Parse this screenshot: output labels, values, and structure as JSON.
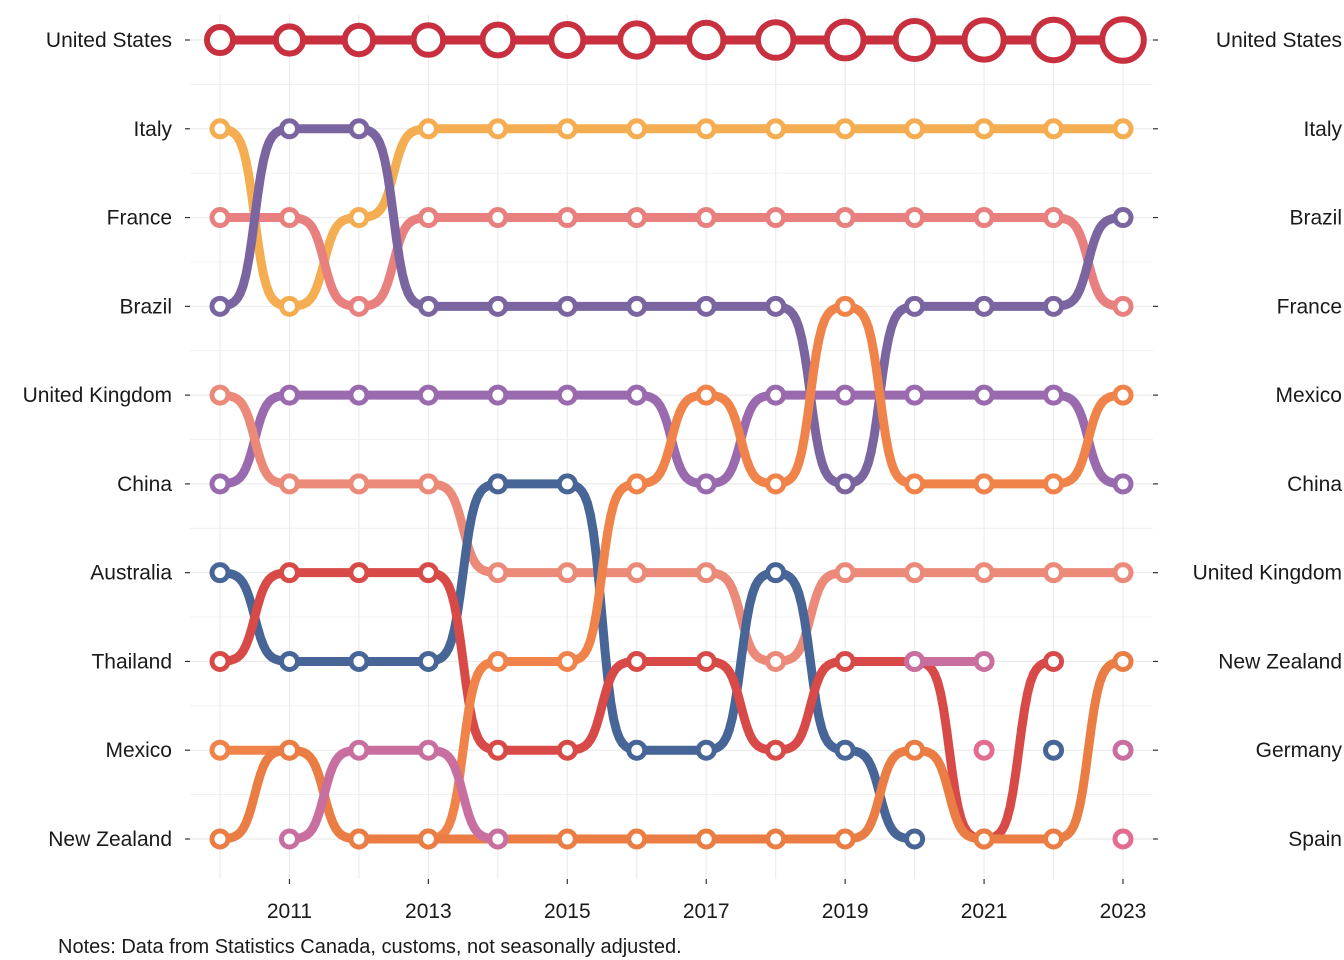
{
  "chart_data": {
    "type": "line",
    "subtype": "bump",
    "title": "",
    "xlabel": "",
    "ylabel": "",
    "note": "Notes: Data from Statistics Canada, customs, not seasonally adjusted.",
    "x": [
      2010,
      2011,
      2012,
      2013,
      2014,
      2015,
      2016,
      2017,
      2018,
      2019,
      2020,
      2021,
      2022,
      2023
    ],
    "xticks": [
      2011,
      2013,
      2015,
      2017,
      2019,
      2021,
      2023
    ],
    "xlim": [
      2010,
      2023
    ],
    "rank_range": [
      1,
      10
    ],
    "y_reversed": true,
    "left_labels": [
      "United States",
      "Italy",
      "France",
      "Brazil",
      "United Kingdom",
      "China",
      "Australia",
      "Thailand",
      "Mexico",
      "New Zealand"
    ],
    "right_labels": [
      "United States",
      "Italy",
      "Brazil",
      "France",
      "Mexico",
      "China",
      "United Kingdom",
      "New Zealand",
      "Germany",
      "Spain"
    ],
    "grid": true,
    "legend": "none",
    "series": [
      {
        "name": "United States",
        "color": "#c8303f",
        "values": [
          1,
          1,
          1,
          1,
          1,
          1,
          1,
          1,
          1,
          1,
          1,
          1,
          1,
          1
        ]
      },
      {
        "name": "Italy",
        "color": "#f5ad52",
        "values": [
          2,
          4,
          3,
          2,
          2,
          2,
          2,
          2,
          2,
          2,
          2,
          2,
          2,
          2
        ]
      },
      {
        "name": "France",
        "color": "#e98080",
        "values": [
          3,
          3,
          4,
          3,
          3,
          3,
          3,
          3,
          3,
          3,
          3,
          3,
          3,
          4
        ]
      },
      {
        "name": "Brazil",
        "color": "#7a65a0",
        "values": [
          4,
          2,
          2,
          4,
          4,
          4,
          4,
          4,
          4,
          6,
          4,
          4,
          4,
          3
        ]
      },
      {
        "name": "China",
        "color": "#9a6aaf",
        "values": [
          6,
          5,
          5,
          5,
          5,
          5,
          5,
          6,
          5,
          5,
          5,
          5,
          5,
          6
        ]
      },
      {
        "name": "United Kingdom",
        "color": "#ec8a7a",
        "values": [
          5,
          6,
          6,
          6,
          7,
          7,
          7,
          7,
          8,
          7,
          7,
          7,
          7,
          7
        ]
      },
      {
        "name": "Australia",
        "color": "#476596",
        "values": [
          7,
          8,
          8,
          8,
          6,
          6,
          9,
          9,
          7,
          9,
          10,
          null,
          9,
          null
        ]
      },
      {
        "name": "Thailand",
        "color": "#d84a47",
        "values": [
          8,
          7,
          7,
          7,
          9,
          9,
          8,
          8,
          9,
          8,
          8,
          10,
          8,
          null
        ]
      },
      {
        "name": "Mexico",
        "color": "#f0834a",
        "values": [
          9,
          9,
          10,
          10,
          8,
          8,
          6,
          5,
          6,
          4,
          6,
          6,
          6,
          5
        ]
      },
      {
        "name": "New Zealand",
        "color": "#ea7d43",
        "values": [
          10,
          9,
          10,
          10,
          10,
          10,
          10,
          10,
          10,
          10,
          9,
          10,
          10,
          8
        ]
      },
      {
        "name": "Germany",
        "color": "#c86fa0",
        "values": [
          null,
          10,
          9,
          9,
          10,
          null,
          null,
          null,
          null,
          null,
          8,
          8,
          null,
          9
        ]
      },
      {
        "name": "Spain",
        "color": "#e46d8f",
        "values": [
          null,
          null,
          null,
          null,
          null,
          null,
          null,
          null,
          null,
          null,
          null,
          9,
          null,
          10
        ]
      }
    ]
  }
}
